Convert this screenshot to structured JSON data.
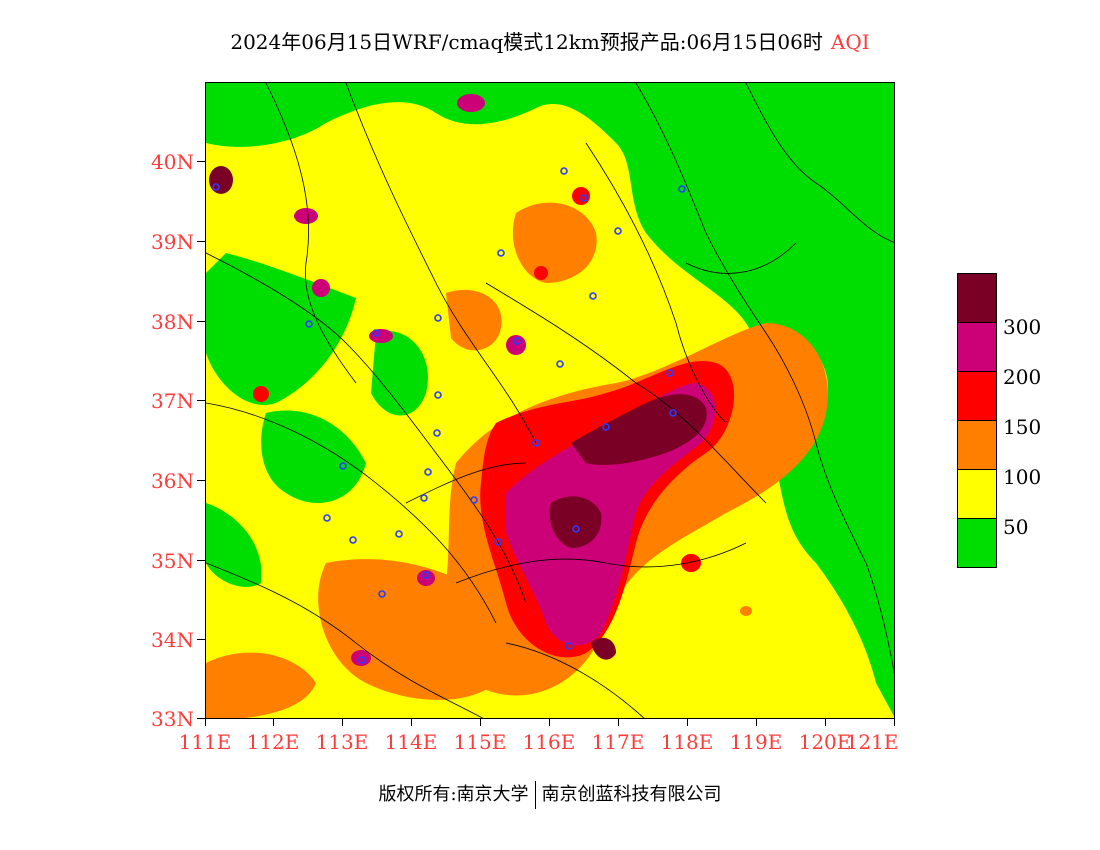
{
  "title": "2024年06月15日WRF/cmaq模式12km预报产品:06月15日06时",
  "title_tag": "AQI",
  "y_axis_labels": [
    "40N",
    "39N",
    "38N",
    "37N",
    "36N",
    "35N",
    "34N",
    "33N"
  ],
  "x_axis_labels": [
    "111E",
    "112E",
    "113E",
    "114E",
    "115E",
    "116E",
    "117E",
    "118E",
    "119E",
    "120E",
    "121E"
  ],
  "legend": {
    "levels": [
      {
        "label": "",
        "color": "#7b0025"
      },
      {
        "label": "300",
        "color": "#cc0077"
      },
      {
        "label": "200",
        "color": "#ff0000"
      },
      {
        "label": "150",
        "color": "#ff7f00"
      },
      {
        "label": "100",
        "color": "#ffff00"
      },
      {
        "label": "50",
        "color": "#00dd00"
      }
    ]
  },
  "colors": {
    "label_red": "#ff3b3b",
    "green": "#00dd00",
    "yellow": "#ffff00",
    "orange": "#ff7f00",
    "red": "#ff0000",
    "magenta": "#cc0077",
    "maroon": "#7b0025"
  },
  "footer": {
    "left": "版权所有:南京大学",
    "right": "南京创蓝科技有限公司"
  }
}
